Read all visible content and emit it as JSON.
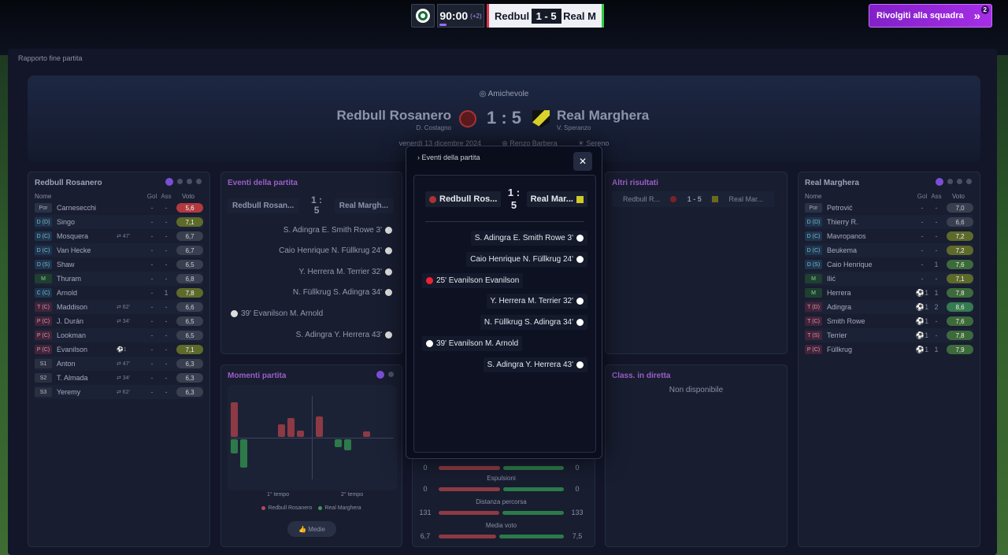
{
  "hud": {
    "time": "90:00",
    "added": "(+2)",
    "home": "Redbul",
    "score": "1 - 5",
    "away": "Real M"
  },
  "back_button": {
    "label": "Rivolgiti alla squadra",
    "badge": "2"
  },
  "breadcrumb": "Rapporto fine partita",
  "match": {
    "competition": "Amichevole",
    "home": "Redbull Rosanero",
    "home_manager": "D. Costagno",
    "away": "Real Marghera",
    "away_manager": "V. Speranzo",
    "score": "1 : 5",
    "date": "venerdì 13 dicembre 2024",
    "referee": "Renzo Barbera",
    "weather": "Sereno"
  },
  "home_panel": {
    "title": "Redbull Rosanero",
    "columns": {
      "name": "Nome",
      "gol": "Gol",
      "ass": "Ass",
      "voto": "Voto"
    },
    "players": [
      {
        "pos": "Por",
        "name": "Carnesecchi",
        "sub": "",
        "gol": "-",
        "ass": "-",
        "voto": "5,6",
        "c": "r",
        "pc": ""
      },
      {
        "pos": "D (D)",
        "name": "Singo",
        "sub": "",
        "gol": "-",
        "ass": "-",
        "voto": "7,1",
        "c": "y",
        "pc": "d"
      },
      {
        "pos": "D (C)",
        "name": "Mosquera",
        "sub": "⇄ 47'",
        "gol": "-",
        "ass": "-",
        "voto": "6,7",
        "c": "",
        "pc": "d"
      },
      {
        "pos": "D (C)",
        "name": "Van Hecke",
        "sub": "",
        "gol": "-",
        "ass": "-",
        "voto": "6,7",
        "c": "",
        "pc": "d"
      },
      {
        "pos": "D (S)",
        "name": "Shaw",
        "sub": "",
        "gol": "-",
        "ass": "-",
        "voto": "6,5",
        "c": "",
        "pc": "d"
      },
      {
        "pos": "M",
        "name": "Thuram",
        "sub": "",
        "gol": "-",
        "ass": "-",
        "voto": "6,8",
        "c": "",
        "pc": "m"
      },
      {
        "pos": "C (C)",
        "name": "Arnold",
        "sub": "",
        "gol": "-",
        "ass": "1",
        "voto": "7,8",
        "c": "y",
        "pc": "d"
      },
      {
        "pos": "T (C)",
        "name": "Maddison",
        "sub": "⇄ 62'",
        "gol": "-",
        "ass": "-",
        "voto": "6,6",
        "c": "",
        "pc": "a"
      },
      {
        "pos": "P (C)",
        "name": "J. Durán",
        "sub": "⇄ 34'",
        "gol": "-",
        "ass": "-",
        "voto": "6,5",
        "c": "",
        "pc": "a"
      },
      {
        "pos": "P (C)",
        "name": "Lookman",
        "sub": "",
        "gol": "-",
        "ass": "-",
        "voto": "6,5",
        "c": "",
        "pc": "a"
      },
      {
        "pos": "P (C)",
        "name": "Evanilson",
        "sub": "⚽1",
        "gol": "-",
        "ass": "-",
        "voto": "7,1",
        "c": "y",
        "pc": "a"
      },
      {
        "pos": "S1",
        "name": "Anton",
        "sub": "⇄ 47'",
        "gol": "-",
        "ass": "-",
        "voto": "6,3",
        "c": "",
        "pc": "s"
      },
      {
        "pos": "S2",
        "name": "T. Almada",
        "sub": "⇄ 34'",
        "gol": "-",
        "ass": "-",
        "voto": "6,3",
        "c": "",
        "pc": "s"
      },
      {
        "pos": "S3",
        "name": "Yeremy",
        "sub": "⇄ 62'",
        "gol": "-",
        "ass": "-",
        "voto": "6,3",
        "c": "",
        "pc": "s"
      }
    ]
  },
  "away_panel": {
    "title": "Real Marghera",
    "columns": {
      "name": "Nome",
      "gol": "Gol",
      "ass": "Ass",
      "voto": "Voto"
    },
    "players": [
      {
        "pos": "Por",
        "name": "Petrović",
        "sub": "",
        "gol": "-",
        "ass": "-",
        "voto": "7,0",
        "c": "",
        "pc": ""
      },
      {
        "pos": "D (D)",
        "name": "Thierry R.",
        "sub": "",
        "gol": "-",
        "ass": "-",
        "voto": "6,6",
        "c": "",
        "pc": "d"
      },
      {
        "pos": "D (C)",
        "name": "Mavropanos",
        "sub": "",
        "gol": "-",
        "ass": "-",
        "voto": "7,2",
        "c": "y",
        "pc": "d"
      },
      {
        "pos": "D (C)",
        "name": "Beukema",
        "sub": "",
        "gol": "-",
        "ass": "-",
        "voto": "7,2",
        "c": "y",
        "pc": "d"
      },
      {
        "pos": "D (S)",
        "name": "Caio Henrique",
        "sub": "",
        "gol": "-",
        "ass": "1",
        "voto": "7,6",
        "c": "g",
        "pc": "d"
      },
      {
        "pos": "M",
        "name": "Ilić",
        "sub": "",
        "gol": "-",
        "ass": "-",
        "voto": "7,1",
        "c": "y",
        "pc": "m"
      },
      {
        "pos": "M",
        "name": "Herrera",
        "sub": "",
        "gol": "⚽1",
        "ass": "1",
        "voto": "7,8",
        "c": "g",
        "pc": "m"
      },
      {
        "pos": "T (D)",
        "name": "Adingra",
        "sub": "",
        "gol": "⚽1",
        "ass": "2",
        "voto": "8,6",
        "c": "gg",
        "pc": "a"
      },
      {
        "pos": "T (C)",
        "name": "Smith Rowe",
        "sub": "",
        "gol": "⚽1",
        "ass": "-",
        "voto": "7,6",
        "c": "g",
        "pc": "a"
      },
      {
        "pos": "T (S)",
        "name": "Terrier",
        "sub": "",
        "gol": "⚽1",
        "ass": "-",
        "voto": "7,8",
        "c": "g",
        "pc": "a"
      },
      {
        "pos": "P (C)",
        "name": "Füllkrug",
        "sub": "",
        "gol": "⚽1",
        "ass": "1",
        "voto": "7,9",
        "c": "g",
        "pc": "a"
      }
    ]
  },
  "events_panel": {
    "title": "Eventi della partita",
    "home": "Redbull Rosan...",
    "away": "Real Margh...",
    "score": "1 : 5",
    "events": [
      {
        "side": "away",
        "text": "S. Adingra E. Smith Rowe 3'"
      },
      {
        "side": "away",
        "text": "Caio Henrique N. Füllkrug 24'"
      },
      {
        "side": "away",
        "text": "Y. Herrera M. Terrier 32'"
      },
      {
        "side": "away",
        "text": "N. Füllkrug S. Adingra 34'"
      },
      {
        "side": "home",
        "text": "39' Evanilson M. Arnold"
      },
      {
        "side": "away",
        "text": "S. Adingra Y. Herrera 43'"
      }
    ]
  },
  "moments": {
    "title": "Momenti partita",
    "first": "1° tempo",
    "second": "2° tempo",
    "legend_home": "Redbull Rosanero",
    "legend_away": "Real Marghera",
    "button": "Medie",
    "home_bars": [
      18,
      36,
      0,
      0,
      0,
      0,
      0,
      0,
      0,
      0,
      0,
      10,
      14,
      0,
      0,
      0,
      0
    ],
    "away_bars": [
      44,
      0,
      0,
      0,
      0,
      16,
      24,
      8,
      0,
      26,
      0,
      0,
      0,
      0,
      7,
      0,
      0
    ]
  },
  "other_results": {
    "title": "Altri risultati",
    "home": "Redbull R...",
    "score": "1 - 5",
    "away": "Real Mar..."
  },
  "live_table": {
    "title": "Class. in diretta",
    "empty": "Non disponibile"
  },
  "stats": [
    {
      "label": "",
      "h": "0",
      "a": "0",
      "hf": 0.5
    },
    {
      "label": "Espulsioni",
      "h": "0",
      "a": "0",
      "hf": 0.5
    },
    {
      "label": "Distanza percorsa",
      "h": "131",
      "a": "133",
      "hf": 0.496
    },
    {
      "label": "Media voto",
      "h": "6,7",
      "a": "7,5",
      "hf": 0.472
    }
  ],
  "modal": {
    "title": "Eventi della partita",
    "close": "✕",
    "home": "Redbull Ros...",
    "away": "Real Mar...",
    "score_top": "1 :",
    "score_bot": "5",
    "events": [
      {
        "side": "away",
        "text": "S. Adingra E. Smith Rowe 3'"
      },
      {
        "side": "away",
        "text": "Caio Henrique N. Füllkrug 24'"
      },
      {
        "side": "home",
        "text": "25' Evanilson Evanilson",
        "red": true
      },
      {
        "side": "away",
        "text": "Y. Herrera M. Terrier 32'"
      },
      {
        "side": "away",
        "text": "N. Füllkrug S. Adingra 34'"
      },
      {
        "side": "home",
        "text": "39' Evanilson M. Arnold"
      },
      {
        "side": "away",
        "text": "S. Adingra Y. Herrera 43'"
      }
    ]
  }
}
